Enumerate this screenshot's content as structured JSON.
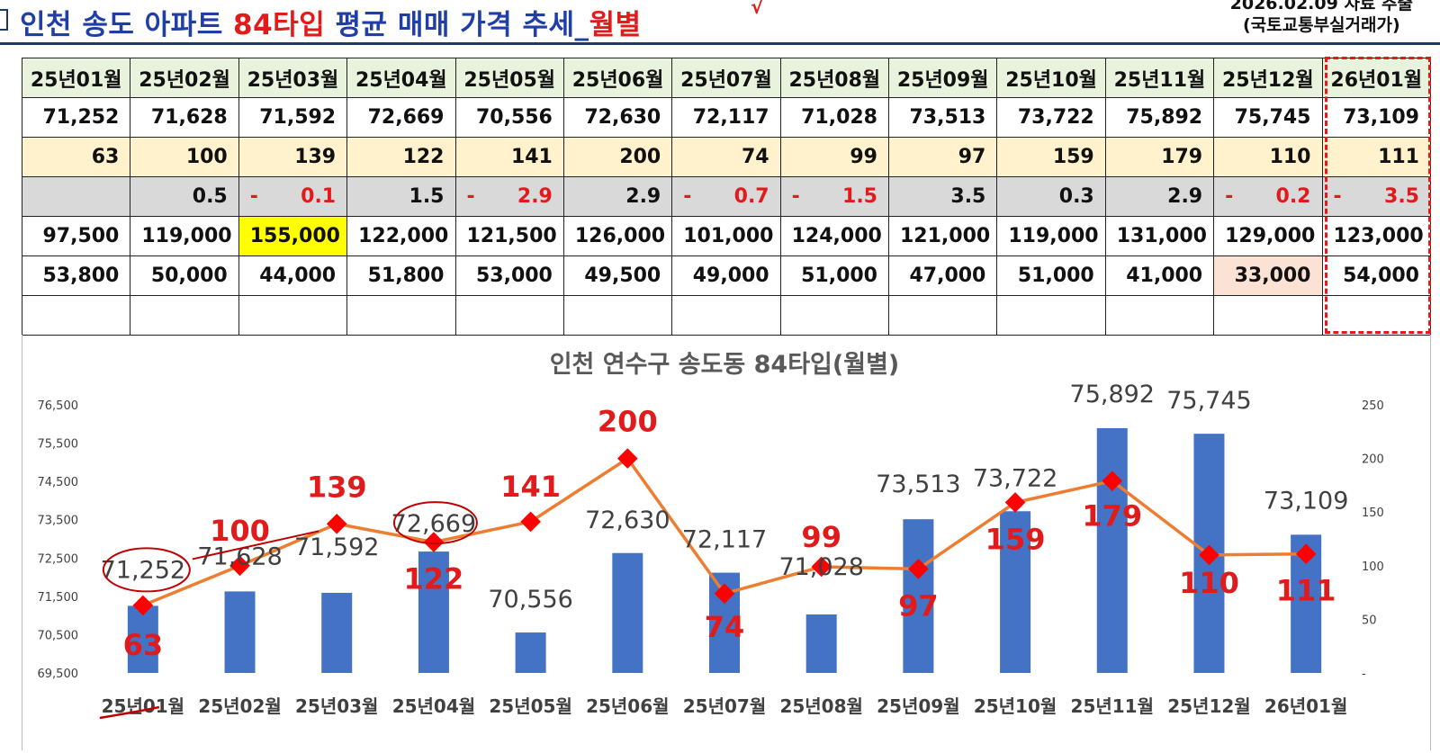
{
  "header": {
    "title_prefix": "인천 송도 아파트 ",
    "title_highlight": "84타입",
    "title_middle": " 평균 매매 가격 추세_",
    "title_suffix": "월별",
    "source_line1": "2026.02.09 자료 추출",
    "source_line2": "(국토교통부실거래가)"
  },
  "table": {
    "months": [
      "25년01월",
      "25년02월",
      "25년03월",
      "25년04월",
      "25년05월",
      "25년06월",
      "25년07월",
      "25년08월",
      "25년09월",
      "25년10월",
      "25년11월",
      "25년12월",
      "26년01월"
    ],
    "avg_price": [
      "71,252",
      "71,628",
      "71,592",
      "72,669",
      "70,556",
      "72,630",
      "72,117",
      "71,028",
      "73,513",
      "73,722",
      "75,892",
      "75,745",
      "73,109"
    ],
    "volume": [
      "63",
      "100",
      "139",
      "122",
      "141",
      "200",
      "74",
      "99",
      "97",
      "159",
      "179",
      "110",
      "111"
    ],
    "change": [
      {
        "sign": "",
        "value": ""
      },
      {
        "sign": "",
        "value": "0.5"
      },
      {
        "sign": "-",
        "value": "0.1"
      },
      {
        "sign": "",
        "value": "1.5"
      },
      {
        "sign": "-",
        "value": "2.9"
      },
      {
        "sign": "",
        "value": "2.9"
      },
      {
        "sign": "-",
        "value": "0.7"
      },
      {
        "sign": "-",
        "value": "1.5"
      },
      {
        "sign": "",
        "value": "3.5"
      },
      {
        "sign": "",
        "value": "0.3"
      },
      {
        "sign": "",
        "value": "2.9"
      },
      {
        "sign": "-",
        "value": "0.2"
      },
      {
        "sign": "-",
        "value": "3.5"
      }
    ],
    "max_price": [
      "97,500",
      "119,000",
      "155,000",
      "122,000",
      "121,500",
      "126,000",
      "101,000",
      "124,000",
      "121,000",
      "119,000",
      "131,000",
      "129,000",
      "123,000"
    ],
    "min_price": [
      "53,800",
      "50,000",
      "44,000",
      "51,800",
      "53,000",
      "49,500",
      "49,000",
      "51,000",
      "47,000",
      "51,000",
      "41,000",
      "33,000",
      "54,000"
    ]
  },
  "chart_data": {
    "type": "bar",
    "title": "인천 연수구 송도동 84타입(월별)",
    "categories": [
      "25년01월",
      "25년02월",
      "25년03월",
      "25년04월",
      "25년05월",
      "25년06월",
      "25년07월",
      "25년08월",
      "25년09월",
      "25년10월",
      "25년11월",
      "25년12월",
      "26년01월"
    ],
    "series": [
      {
        "type": "bar",
        "axis": "left",
        "values": [
          71252,
          71628,
          71592,
          72669,
          70556,
          72630,
          72117,
          71028,
          73513,
          73722,
          75892,
          75745,
          73109
        ]
      },
      {
        "type": "line",
        "axis": "right",
        "values": [
          63,
          100,
          139,
          122,
          141,
          200,
          74,
          99,
          97,
          159,
          179,
          110,
          111
        ]
      }
    ],
    "bar_labels": [
      "71,252",
      "71,628",
      "71,592",
      "72,669",
      "70,556",
      "72,630",
      "72,117",
      "71,028",
      "73,513",
      "73,722",
      "75,892",
      "75,745",
      "73,109"
    ],
    "line_labels": [
      "63",
      "100",
      "139",
      "122",
      "141",
      "200",
      "74",
      "99",
      "97",
      "159",
      "179",
      "110",
      "111"
    ],
    "ylim": [
      69500,
      76500
    ],
    "yticks": [
      69500,
      70500,
      71500,
      72500,
      73500,
      74500,
      75500,
      76500
    ],
    "ytick_labels": [
      "69,500",
      "70,500",
      "71,500",
      "72,500",
      "73,500",
      "74,500",
      "75,500",
      "76,500"
    ],
    "y2lim": [
      0,
      250
    ],
    "y2ticks": [
      0,
      50,
      100,
      150,
      200,
      250
    ],
    "y2tick_labels": [
      "-",
      "50",
      "100",
      "150",
      "200",
      "250"
    ],
    "grid": false,
    "colors": {
      "bar": "#4472c4",
      "line": "#ed7d31",
      "marker": "#ff0000",
      "volume_label": "#e11b1b",
      "price_label": "#404040"
    }
  }
}
